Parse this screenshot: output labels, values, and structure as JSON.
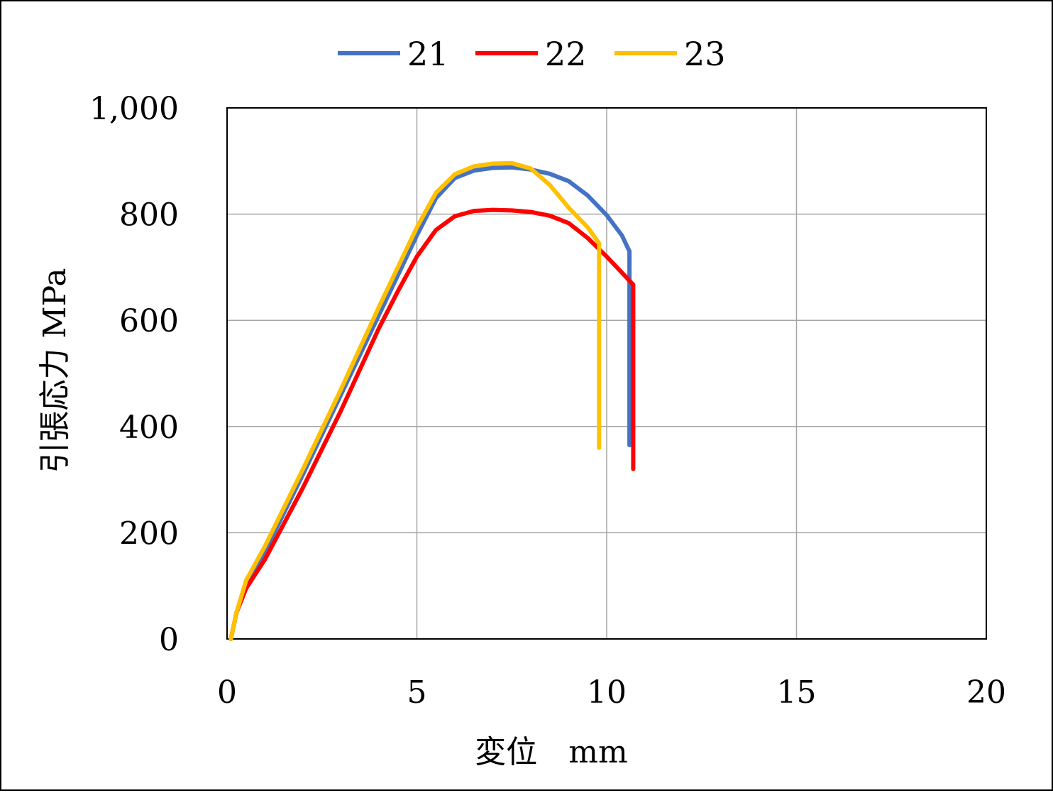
{
  "chart_data": {
    "type": "line",
    "title": "",
    "xlabel": "変位　mm",
    "ylabel": "引張応力 MPa",
    "xlim": [
      0,
      20
    ],
    "ylim": [
      0,
      1000
    ],
    "xticks": [
      0,
      5,
      10,
      15,
      20
    ],
    "xtick_labels": [
      "0",
      "5",
      "10",
      "15",
      "20"
    ],
    "yticks": [
      0,
      200,
      400,
      600,
      800,
      1000
    ],
    "ytick_labels": [
      "0",
      "200",
      "400",
      "600",
      "800",
      "1,000"
    ],
    "grid": true,
    "legend_position": "top",
    "series": [
      {
        "name": "21",
        "color": "#4472C4",
        "points": [
          [
            0.1,
            0
          ],
          [
            0.25,
            50
          ],
          [
            0.5,
            100
          ],
          [
            1.0,
            165
          ],
          [
            2.0,
            310
          ],
          [
            3.0,
            460
          ],
          [
            4.0,
            610
          ],
          [
            5.0,
            760
          ],
          [
            5.5,
            830
          ],
          [
            6.0,
            868
          ],
          [
            6.5,
            882
          ],
          [
            7.0,
            887
          ],
          [
            7.5,
            888
          ],
          [
            8.0,
            884
          ],
          [
            8.5,
            876
          ],
          [
            9.0,
            862
          ],
          [
            9.5,
            835
          ],
          [
            10.0,
            798
          ],
          [
            10.4,
            760
          ],
          [
            10.6,
            730
          ],
          [
            10.6,
            365
          ]
        ]
      },
      {
        "name": "22",
        "color": "#FF0000",
        "points": [
          [
            0.1,
            0
          ],
          [
            0.25,
            50
          ],
          [
            0.5,
            95
          ],
          [
            1.0,
            150
          ],
          [
            2.0,
            285
          ],
          [
            3.0,
            430
          ],
          [
            4.0,
            585
          ],
          [
            4.5,
            655
          ],
          [
            5.0,
            720
          ],
          [
            5.5,
            770
          ],
          [
            6.0,
            796
          ],
          [
            6.5,
            806
          ],
          [
            7.0,
            808
          ],
          [
            7.5,
            807
          ],
          [
            8.0,
            804
          ],
          [
            8.5,
            797
          ],
          [
            9.0,
            783
          ],
          [
            9.5,
            755
          ],
          [
            10.0,
            720
          ],
          [
            10.4,
            690
          ],
          [
            10.7,
            667
          ],
          [
            10.7,
            320
          ]
        ]
      },
      {
        "name": "23",
        "color": "#FFC000",
        "points": [
          [
            0.1,
            0
          ],
          [
            0.25,
            50
          ],
          [
            0.5,
            110
          ],
          [
            1.0,
            175
          ],
          [
            2.0,
            320
          ],
          [
            3.0,
            470
          ],
          [
            4.0,
            625
          ],
          [
            5.0,
            775
          ],
          [
            5.5,
            840
          ],
          [
            6.0,
            875
          ],
          [
            6.5,
            890
          ],
          [
            7.0,
            895
          ],
          [
            7.5,
            896
          ],
          [
            8.0,
            886
          ],
          [
            8.5,
            855
          ],
          [
            9.0,
            812
          ],
          [
            9.5,
            775
          ],
          [
            9.8,
            745
          ],
          [
            9.8,
            360
          ]
        ]
      }
    ]
  }
}
